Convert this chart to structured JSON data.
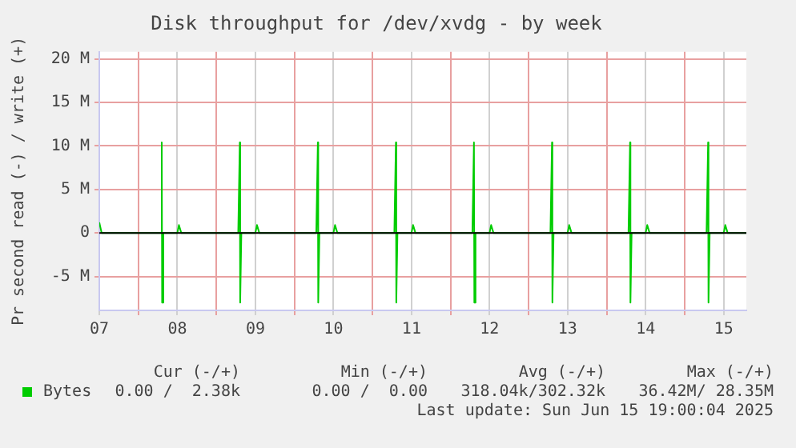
{
  "chart_data": {
    "type": "line",
    "title": "Disk throughput for /dev/xvdg - by week",
    "ylabel": "Pr second read (-) / write (+)",
    "x": [
      7.0,
      7.03,
      7.78,
      7.8,
      7.805,
      7.82,
      8.0,
      8.02,
      8.05,
      8.78,
      8.8,
      8.805,
      8.82,
      9.0,
      9.02,
      9.05,
      9.78,
      9.8,
      9.805,
      9.82,
      10.0,
      10.02,
      10.05,
      10.78,
      10.8,
      10.805,
      10.82,
      11.0,
      11.02,
      11.05,
      11.78,
      11.8,
      11.805,
      11.82,
      12.0,
      12.02,
      12.05,
      12.78,
      12.8,
      12.805,
      12.82,
      13.0,
      13.02,
      13.05,
      13.78,
      13.8,
      13.805,
      13.82,
      14.0,
      14.02,
      14.05,
      14.78,
      14.8,
      14.805,
      14.82,
      15.0,
      15.02,
      15.05,
      15.29
    ],
    "series": [
      {
        "name": "Bytes",
        "color": "#00cc00",
        "values": [
          1.2,
          0,
          0,
          10.4,
          -8.0,
          0,
          0,
          0.9,
          0,
          0,
          10.4,
          -8.0,
          0,
          0,
          0.9,
          0,
          0,
          10.4,
          -8.0,
          0,
          0,
          0.9,
          0,
          0,
          10.4,
          -8.0,
          0,
          0,
          0.9,
          0,
          0,
          10.4,
          -8.0,
          0,
          0,
          0.9,
          0,
          0,
          10.4,
          -8.0,
          0,
          0,
          0.9,
          0,
          0,
          10.4,
          -8.0,
          0,
          0,
          0.9,
          0,
          0,
          10.4,
          -8.0,
          0,
          0,
          0.9,
          0,
          0
        ]
      }
    ],
    "xlim": [
      7,
      15.29
    ],
    "xticks": [
      {
        "value": 7,
        "label": "07"
      },
      {
        "value": 7.5,
        "label": null
      },
      {
        "value": 8,
        "label": "08"
      },
      {
        "value": 8.5,
        "label": null
      },
      {
        "value": 9,
        "label": "09"
      },
      {
        "value": 9.5,
        "label": null
      },
      {
        "value": 10,
        "label": "10"
      },
      {
        "value": 10.5,
        "label": null
      },
      {
        "value": 11,
        "label": "11"
      },
      {
        "value": 11.5,
        "label": null
      },
      {
        "value": 12,
        "label": "12"
      },
      {
        "value": 12.5,
        "label": null
      },
      {
        "value": 13,
        "label": "13"
      },
      {
        "value": 13.5,
        "label": null
      },
      {
        "value": 14,
        "label": "14"
      },
      {
        "value": 14.5,
        "label": null
      },
      {
        "value": 15,
        "label": "15"
      }
    ],
    "ylim": [
      -8.9,
      20.8
    ],
    "yticks": [
      {
        "value": -5,
        "label": "-5 M"
      },
      {
        "value": 0,
        "label": "0"
      },
      {
        "value": 5,
        "label": "5 M"
      },
      {
        "value": 10,
        "label": "10 M"
      },
      {
        "value": 15,
        "label": "15 M"
      },
      {
        "value": 20,
        "label": "20 M"
      }
    ],
    "ref_lines": [
      {
        "axis": "y",
        "value": 0,
        "color": "#000000"
      }
    ],
    "grid": true,
    "legend": "bottom left",
    "marker": "none",
    "line_style": "solid",
    "annotations": [
      "Cur (-/+)",
      "Min (-/+)",
      "Avg (-/+)",
      "Max (-/+)",
      "0.00 /  2.38k",
      "0.00 /  0.00",
      "318.04k/302.32k",
      "36.42M/ 28.35M",
      "Last update: Sun Jun 15 19:00:04 2025"
    ]
  }
}
